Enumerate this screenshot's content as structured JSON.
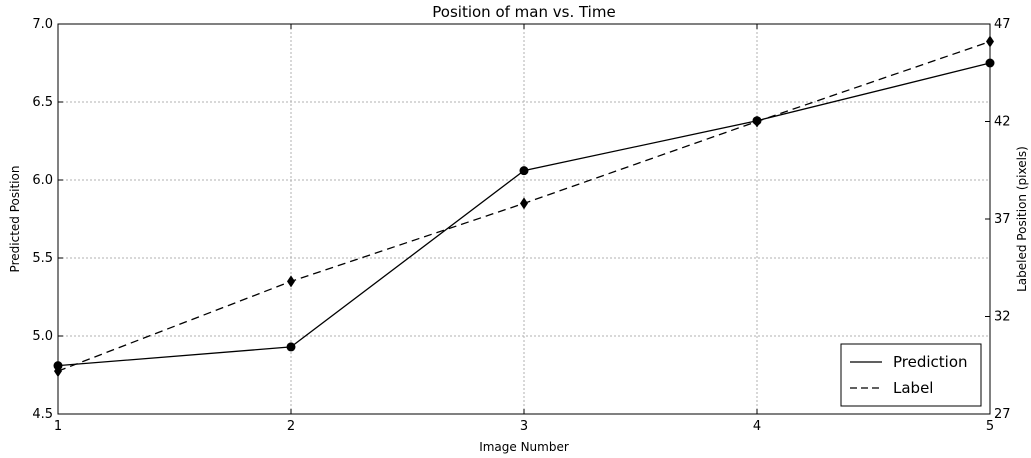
{
  "chart_data": {
    "type": "line",
    "title": "Position of man vs. Time",
    "xlabel": "Image Number",
    "ylabel": "Predicted Position",
    "ylabel_right": "Labeled Position (pixels)",
    "x": [
      1,
      2,
      3,
      4,
      5
    ],
    "xlim": [
      1,
      5
    ],
    "ylim": [
      4.5,
      7.0
    ],
    "ylim_right": [
      27,
      47
    ],
    "x_ticks": [
      "1",
      "2",
      "3",
      "4",
      "5"
    ],
    "y_ticks": [
      "4.5",
      "5.0",
      "5.5",
      "6.0",
      "6.5",
      "7.0"
    ],
    "y_ticks_right": [
      "27",
      "32",
      "37",
      "42",
      "47"
    ],
    "grid": true,
    "legend_position": "lower-right",
    "series": [
      {
        "name": "Prediction",
        "axis": "left",
        "values": [
          4.81,
          4.93,
          6.06,
          6.38,
          6.75
        ],
        "line_style": "solid",
        "marker": "circle",
        "color": "#000000"
      },
      {
        "name": "Label",
        "axis": "right",
        "values": [
          29.2,
          33.8,
          37.8,
          42.0,
          46.1
        ],
        "line_style": "dashed",
        "marker": "diamond",
        "color": "#000000"
      }
    ]
  }
}
